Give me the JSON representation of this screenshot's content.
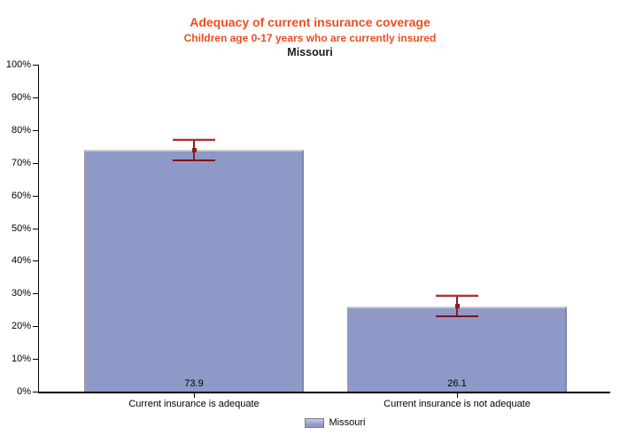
{
  "chart_data": {
    "type": "bar",
    "title": "Adequacy of current insurance coverage",
    "subtitle": "Children age 0-17 years who are currently insured",
    "region_title": "Missouri",
    "categories": [
      "Current insurance is adequate",
      "Current insurance is not adequate"
    ],
    "series": [
      {
        "name": "Missouri",
        "values": [
          73.9,
          26.1
        ],
        "ci_low": [
          70.8,
          23.1
        ],
        "ci_high": [
          76.9,
          29.2
        ]
      }
    ],
    "value_labels": [
      "73.9",
      "26.1"
    ],
    "ylim": [
      0,
      100
    ],
    "y_ticks": [
      {
        "value": 0,
        "label": "0%"
      },
      {
        "value": 10,
        "label": "10%"
      },
      {
        "value": 20,
        "label": "20%"
      },
      {
        "value": 30,
        "label": "30%"
      },
      {
        "value": 40,
        "label": "40%"
      },
      {
        "value": 50,
        "label": "50%"
      },
      {
        "value": 60,
        "label": "60%"
      },
      {
        "value": 70,
        "label": "70%"
      },
      {
        "value": 80,
        "label": "80%"
      },
      {
        "value": 90,
        "label": "90%"
      },
      {
        "value": 100,
        "label": "100%"
      }
    ],
    "grid": false,
    "legend_position": "bottom",
    "colors": {
      "title": "#EE4D22",
      "subtitle": "#EE4D22",
      "bar_fill": "#8F99C8",
      "bar_edge_top": "#C9C9CE",
      "bar_edge_left": "#9B9BA4",
      "bar_edge_right": "#8286AF",
      "error_dark": "#8E1B1D",
      "error_mid": "#A93132",
      "error_bottom": "#7D1315",
      "error_highlight": "#E5BCBC",
      "axis": "#000000",
      "legend_swatch_top": "#C7CDE6"
    }
  },
  "legend": {
    "items": [
      {
        "label": "Missouri"
      }
    ]
  }
}
